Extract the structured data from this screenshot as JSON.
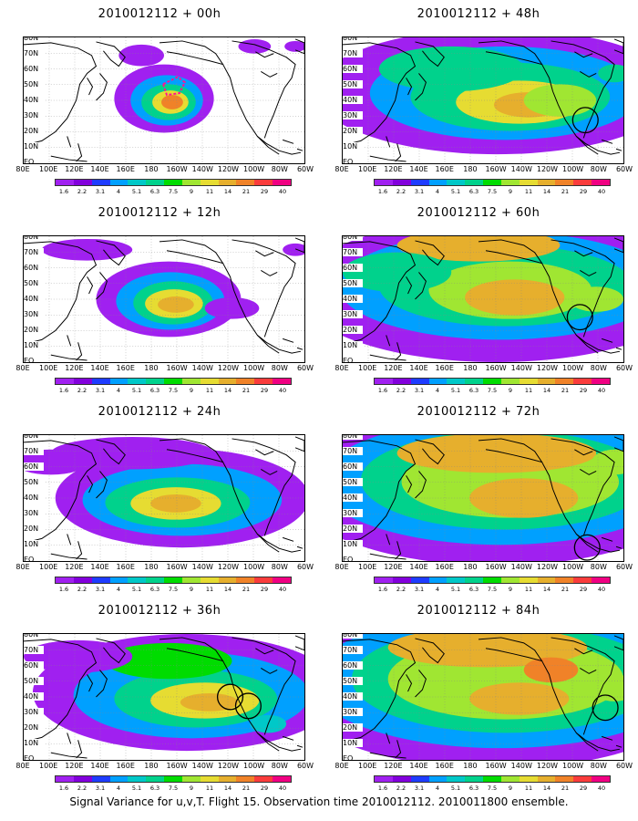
{
  "figure": {
    "caption": "Signal Variance for u,v,T. Flight 15. Observation time 2010012112. 2010011800 ensemble."
  },
  "axes": {
    "lat_labels": [
      "80N",
      "70N",
      "60N",
      "50N",
      "40N",
      "30N",
      "20N",
      "10N",
      "EQ"
    ],
    "lon_labels": [
      "80E",
      "100E",
      "120E",
      "140E",
      "160E",
      "180",
      "160W",
      "140W",
      "120W",
      "100W",
      "80W",
      "60W"
    ]
  },
  "colorbar": {
    "levels": [
      "1.6",
      "2.2",
      "3.1",
      "4",
      "5.1",
      "6.3",
      "7.5",
      "9",
      "11",
      "14",
      "21",
      "29",
      "40"
    ],
    "colors": [
      "#a020f0",
      "#8200dc",
      "#1e3cff",
      "#00a0ff",
      "#00c8c8",
      "#00d28c",
      "#00dc00",
      "#a0e632",
      "#e6dc32",
      "#e6af2d",
      "#f08228",
      "#fa3c3c",
      "#f00082"
    ]
  },
  "panels": [
    {
      "title": "2010012112 + 00h",
      "spread": 0,
      "has_target_box": true,
      "circles": []
    },
    {
      "title": "2010012112 + 12h",
      "spread": 1,
      "has_target_box": false,
      "circles": []
    },
    {
      "title": "2010012112 + 24h",
      "spread": 2,
      "has_target_box": false,
      "circles": []
    },
    {
      "title": "2010012112 + 36h",
      "spread": 3,
      "has_target_box": false,
      "circles": [
        "southwest US",
        "southwest US"
      ]
    },
    {
      "title": "2010012112 + 48h",
      "spread": 4,
      "has_target_box": false,
      "circles": [
        "Great Lakes"
      ]
    },
    {
      "title": "2010012112 + 60h",
      "spread": 5,
      "has_target_box": false,
      "circles": [
        "central US"
      ]
    },
    {
      "title": "2010012112 + 72h",
      "spread": 6,
      "has_target_box": false,
      "circles": [
        "Gulf coast"
      ]
    },
    {
      "title": "2010012112 + 84h",
      "spread": 7,
      "has_target_box": false,
      "circles": [
        "eastern US"
      ]
    }
  ]
}
